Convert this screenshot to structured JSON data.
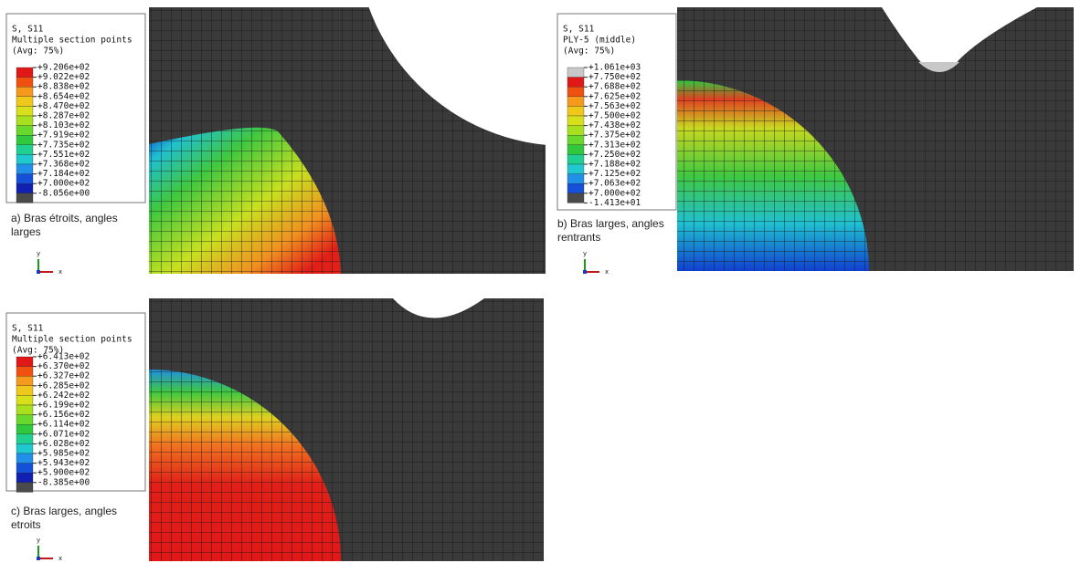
{
  "panels": [
    {
      "legend": {
        "title": [
          "S, S11",
          "Multiple section points",
          "(Avg: 75%)"
        ],
        "labels": [
          "+9.206e+02",
          "+9.022e+02",
          "+8.838e+02",
          "+8.654e+02",
          "+8.470e+02",
          "+8.287e+02",
          "+8.103e+02",
          "+7.919e+02",
          "+7.735e+02",
          "+7.551e+02",
          "+7.368e+02",
          "+7.184e+02",
          "+7.000e+02",
          "-8.056e+00"
        ],
        "colors": [
          "#e01818",
          "#f05010",
          "#f59a1c",
          "#f0c81c",
          "#d8e01c",
          "#a8e020",
          "#68d82c",
          "#30c83c",
          "#20d090",
          "#20c8d0",
          "#2090e8",
          "#1450d8",
          "#1020b0",
          "#4a4a4a"
        ]
      },
      "caption": "a) Bras étroits, angles larges",
      "triad": {
        "y": "y",
        "x": "x"
      }
    },
    {
      "legend": {
        "title": [
          "S, S11",
          "PLY-5 (middle)",
          "(Avg: 75%)"
        ],
        "labels": [
          "+1.061e+03",
          "+7.750e+02",
          "+7.688e+02",
          "+7.625e+02",
          "+7.563e+02",
          "+7.500e+02",
          "+7.438e+02",
          "+7.375e+02",
          "+7.313e+02",
          "+7.250e+02",
          "+7.188e+02",
          "+7.125e+02",
          "+7.063e+02",
          "+7.000e+02",
          "-1.413e+01"
        ],
        "colors": [
          "#c8c8c8",
          "#e01818",
          "#f05010",
          "#f59a1c",
          "#f0c81c",
          "#d8e01c",
          "#a8e020",
          "#68d82c",
          "#30c83c",
          "#20d090",
          "#20c8d0",
          "#2090e8",
          "#1450d8",
          "#4a4a4a"
        ]
      },
      "caption": "b) Bras larges, angles rentrants",
      "triad": {
        "y": "y",
        "x": "x"
      }
    },
    {
      "legend": {
        "title": [
          "S, S11",
          "Multiple section points",
          "(Avg: 75%)"
        ],
        "labels": [
          "+6.413e+02",
          "+6.370e+02",
          "+6.327e+02",
          "+6.285e+02",
          "+6.242e+02",
          "+6.199e+02",
          "+6.156e+02",
          "+6.114e+02",
          "+6.071e+02",
          "+6.028e+02",
          "+5.985e+02",
          "+5.943e+02",
          "+5.900e+02",
          "-8.385e+00"
        ],
        "colors": [
          "#e01818",
          "#f05010",
          "#f59a1c",
          "#f0c81c",
          "#d8e01c",
          "#a8e020",
          "#68d82c",
          "#30c83c",
          "#20d090",
          "#20c8d0",
          "#2090e8",
          "#1450d8",
          "#1020b0",
          "#4a4a4a"
        ]
      },
      "caption": "c) Bras larges, angles etroits",
      "triad": {
        "y": "y",
        "x": "x"
      }
    }
  ]
}
